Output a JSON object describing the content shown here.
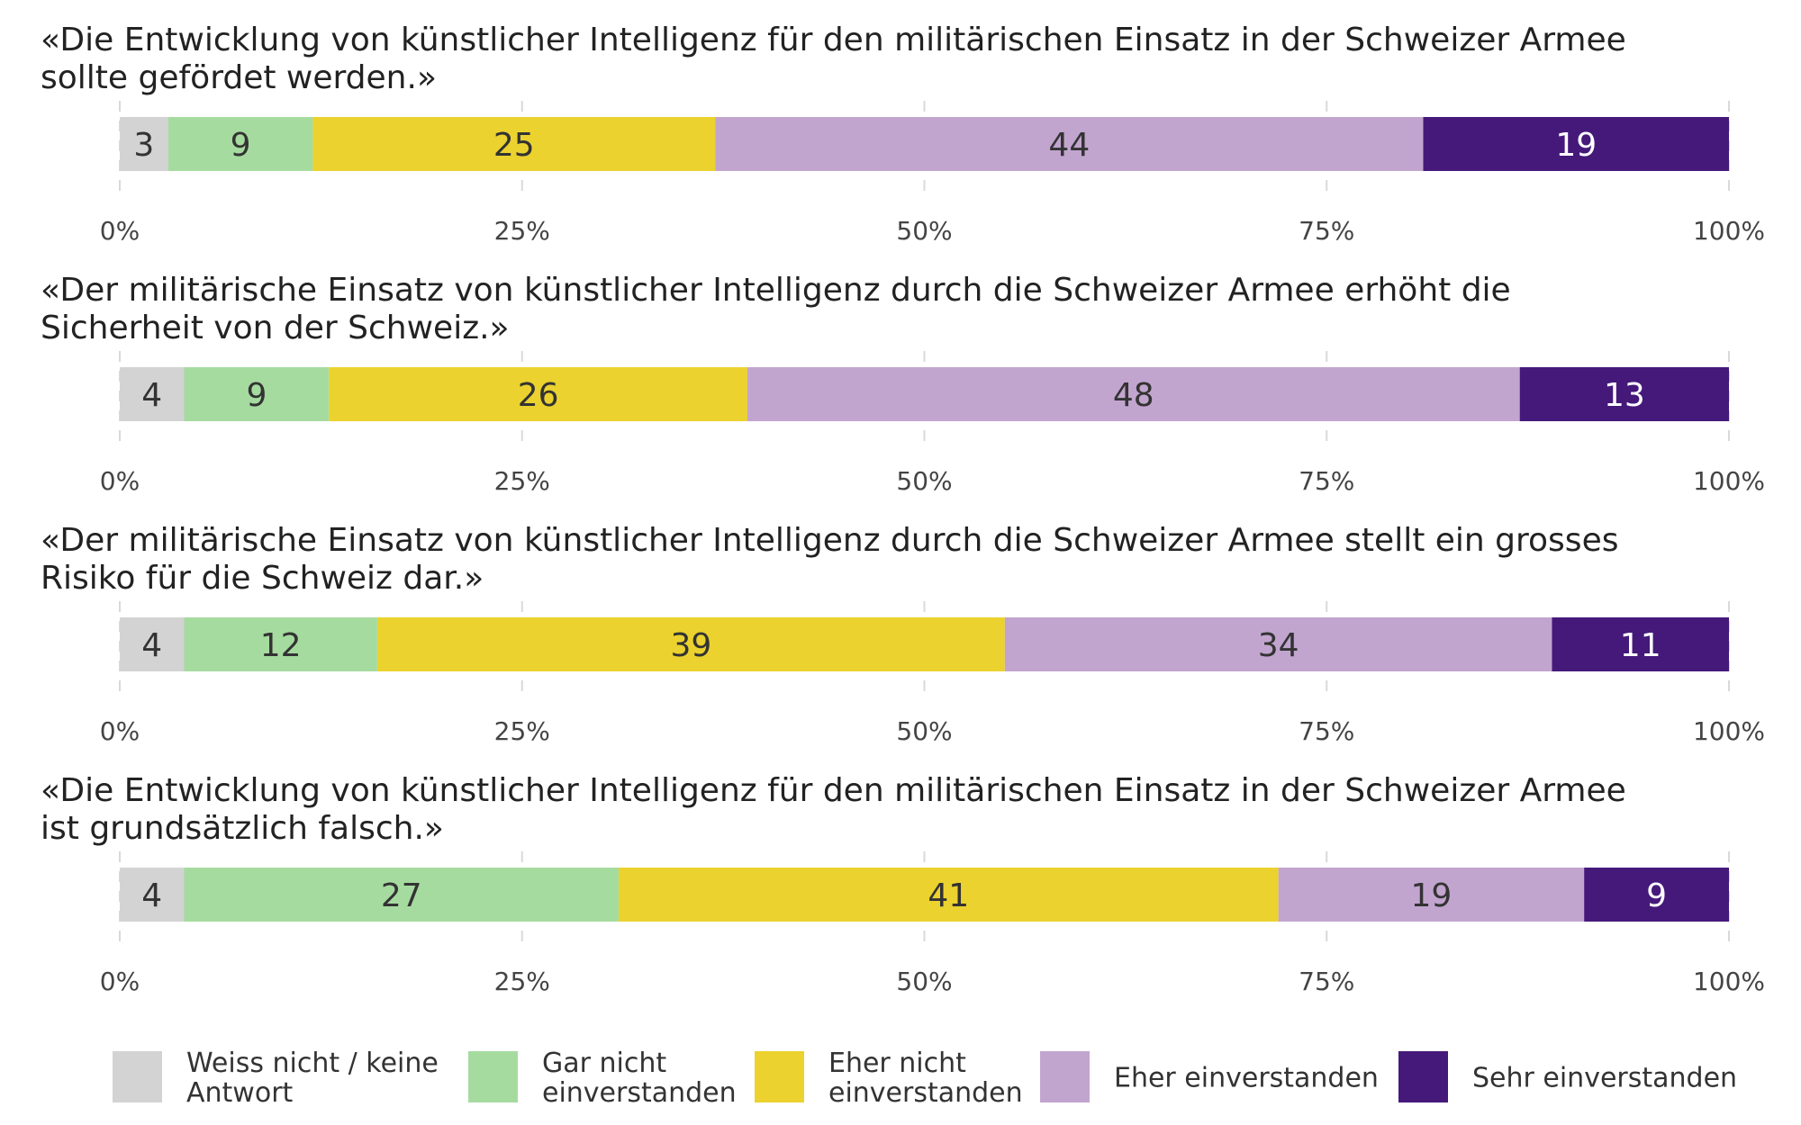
{
  "chart_data": {
    "type": "bar",
    "orientation": "horizontal",
    "stacked": true,
    "unit": "%",
    "xlim": [
      0,
      100
    ],
    "x_ticks": [
      "0%",
      "25%",
      "50%",
      "75%",
      "100%"
    ],
    "grid": true,
    "legend_position": "bottom",
    "series": [
      {
        "key": "wn",
        "name_lines": [
          "Weiss nicht / keine",
          "Antwort"
        ],
        "color": "#d3d3d3",
        "label_color": "#333333"
      },
      {
        "key": "gn",
        "name_lines": [
          "Gar nicht",
          "einverstanden"
        ],
        "color": "#a6dba0",
        "label_color": "#333333"
      },
      {
        "key": "en",
        "name_lines": [
          "Eher nicht",
          "einverstanden"
        ],
        "color": "#ebd22e",
        "label_color": "#333333"
      },
      {
        "key": "ee",
        "name_lines": [
          "Eher einverstanden"
        ],
        "color": "#c2a5cf",
        "label_color": "#333333"
      },
      {
        "key": "se",
        "name_lines": [
          "Sehr einverstanden"
        ],
        "color": "#45197a",
        "label_color": "#ffffff"
      }
    ],
    "panels": [
      {
        "title_lines": [
          "«Die Entwicklung von künstlicher Intelligenz für den militärischen Einsatz in der Schweizer Armee",
          "sollte gefördet werden.»"
        ],
        "values": [
          3,
          9,
          25,
          44,
          19
        ]
      },
      {
        "title_lines": [
          "«Der militärische Einsatz von künstlicher Intelligenz durch die Schweizer Armee erhöht die",
          "Sicherheit von der Schweiz.»"
        ],
        "values": [
          4,
          9,
          26,
          48,
          13
        ]
      },
      {
        "title_lines": [
          "«Der militärische Einsatz von künstlicher Intelligenz durch die Schweizer Armee stellt ein grosses",
          "Risiko für die Schweiz dar.»"
        ],
        "values": [
          4,
          12,
          39,
          34,
          11
        ]
      },
      {
        "title_lines": [
          "«Die Entwicklung von künstlicher Intelligenz für den militärischen Einsatz in der Schweizer Armee",
          "ist grundsätzlich falsch.»"
        ],
        "values": [
          4,
          27,
          41,
          19,
          9
        ]
      }
    ]
  }
}
